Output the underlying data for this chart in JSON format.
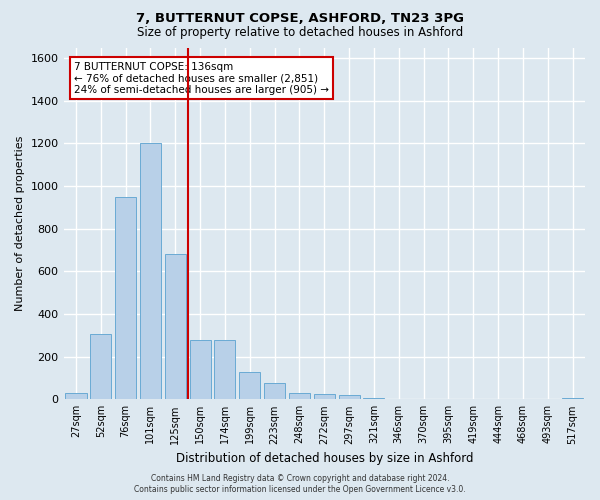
{
  "title1": "7, BUTTERNUT COPSE, ASHFORD, TN23 3PG",
  "title2": "Size of property relative to detached houses in Ashford",
  "xlabel": "Distribution of detached houses by size in Ashford",
  "ylabel": "Number of detached properties",
  "bar_labels": [
    "27sqm",
    "52sqm",
    "76sqm",
    "101sqm",
    "125sqm",
    "150sqm",
    "174sqm",
    "199sqm",
    "223sqm",
    "248sqm",
    "272sqm",
    "297sqm",
    "321sqm",
    "346sqm",
    "370sqm",
    "395sqm",
    "419sqm",
    "444sqm",
    "468sqm",
    "493sqm",
    "517sqm"
  ],
  "bar_values": [
    30,
    305,
    950,
    1200,
    680,
    280,
    280,
    130,
    75,
    30,
    25,
    20,
    5,
    3,
    0,
    2,
    0,
    0,
    0,
    0,
    5
  ],
  "bar_color": "#b8d0e8",
  "bar_edge_color": "#6aaad4",
  "vline_color": "#cc0000",
  "ylim": [
    0,
    1650
  ],
  "yticks": [
    0,
    200,
    400,
    600,
    800,
    1000,
    1200,
    1400,
    1600
  ],
  "annotation_title": "7 BUTTERNUT COPSE: 136sqm",
  "annotation_line1": "← 76% of detached houses are smaller (2,851)",
  "annotation_line2": "24% of semi-detached houses are larger (905) →",
  "footer1": "Contains HM Land Registry data © Crown copyright and database right 2024.",
  "footer2": "Contains public sector information licensed under the Open Government Licence v3.0.",
  "bg_color": "#dde8f0",
  "plot_bg_color": "#dde8f0",
  "grid_color": "#ffffff",
  "annotation_box_color": "#cc0000"
}
